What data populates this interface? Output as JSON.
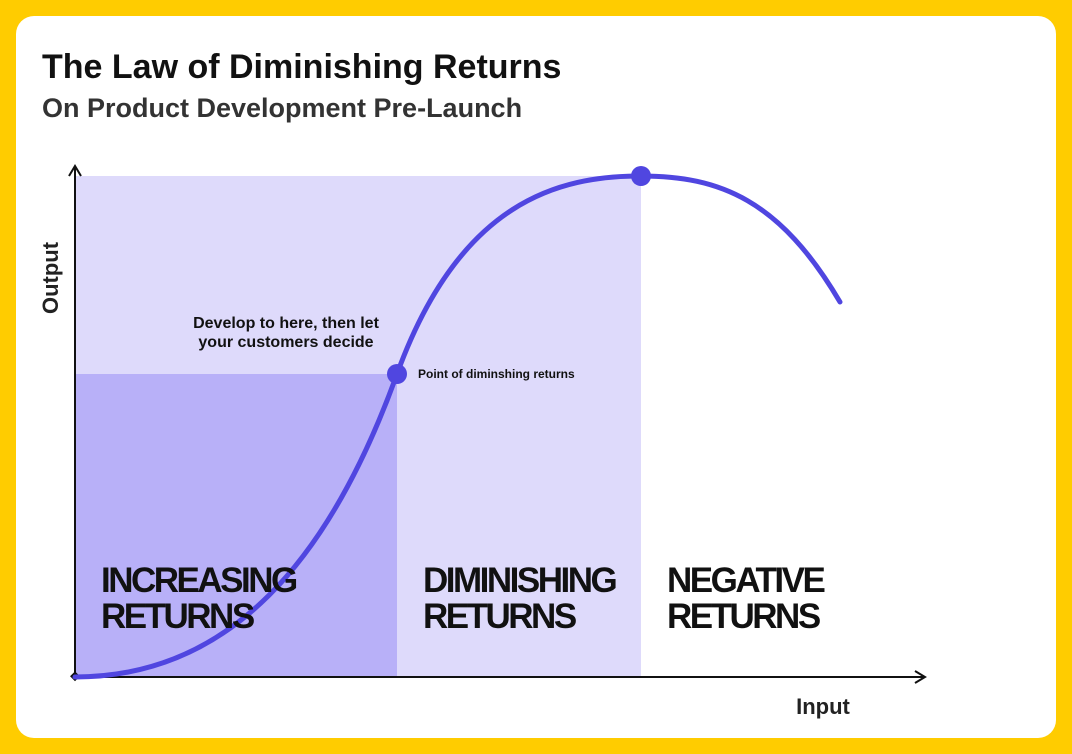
{
  "header": {
    "title": "The Law of Diminishing Returns",
    "subtitle": "On Product Development Pre-Launch"
  },
  "axes": {
    "y_label": "Output",
    "x_label": "Input"
  },
  "regions": [
    {
      "lines": [
        "INCREASING",
        "RETURNS"
      ]
    },
    {
      "lines": [
        "DIMINISHING",
        "RETURNS"
      ]
    },
    {
      "lines": [
        "NEGATIVE",
        "RETURNS"
      ]
    }
  ],
  "annotations": {
    "develop": [
      "Develop to here, then let",
      "your customers decide"
    ],
    "point": "Point of diminshing returns"
  }
}
